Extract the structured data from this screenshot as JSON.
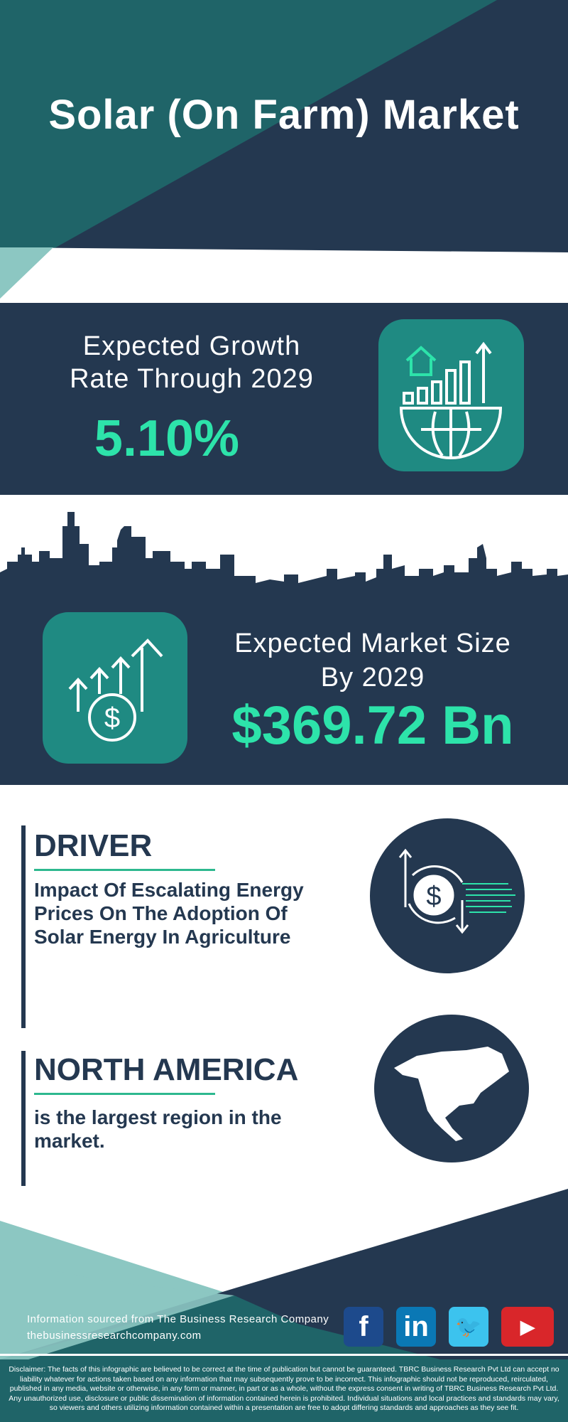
{
  "title": "Solar (On Farm) Market",
  "growth": {
    "label_line1": "Expected Growth",
    "label_line2": "Rate Through 2029",
    "value": "5.10%"
  },
  "market": {
    "label_line1": "Expected Market Size",
    "label_line2": "By 2029",
    "value": "$369.72 Bn"
  },
  "driver": {
    "heading": "DRIVER",
    "text_lines": [
      "Impact Of Escalating Energy",
      "Prices On The Adoption Of",
      "Solar Energy In Agriculture"
    ]
  },
  "region": {
    "heading": "NORTH AMERICA",
    "text_lines": [
      "is the largest region in the",
      "market."
    ]
  },
  "footer": {
    "source": "Information sourced from The Business Research Company",
    "website": "thebusinessresearchcompany.com",
    "social": [
      {
        "name": "facebook",
        "glyph": "f",
        "color": "#1d4a8c"
      },
      {
        "name": "linkedin",
        "glyph": "in",
        "color": "#0a78b5"
      },
      {
        "name": "twitter",
        "glyph": "🐦",
        "color": "#3cc3ee"
      },
      {
        "name": "youtube",
        "glyph": "▶",
        "color": "#d9262a"
      }
    ]
  },
  "disclaimer": "Disclaimer: The facts of this infographic are believed to be correct at the time of publication but cannot be guaranteed. TBRC Business Research Pvt Ltd can accept no liability whatever for actions taken based on any information that may subsequently prove to be incorrect. This infographic should not be reproduced, reirculated, published in any media, website or otherwise, in any form or manner, in part or as a whole, without the express consent in writing of TBRC Business Research Pvt Ltd. Any unauthorized use, disclosure or public dissemination of information contained herein is prohibited. Individual situations and local practices and standards may vary, so viewers and others utilizing information contained within a presentation are free to adopt differing standards and approaches as they see fit.",
  "colors": {
    "navy": "#243850",
    "teal": "#1f6468",
    "light_teal": "#8cc7c2",
    "accent": "#2de3aa"
  }
}
